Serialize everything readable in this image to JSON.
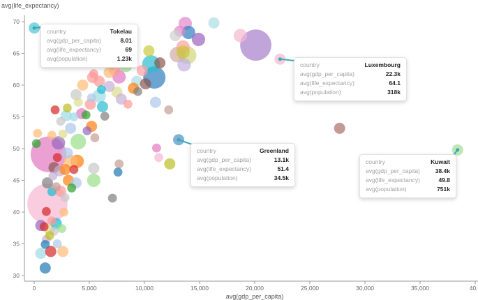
{
  "chart_data": {
    "type": "scatter",
    "title": "",
    "xlabel": "avg(gdp_per_capita)",
    "ylabel": "avg(life_expectancy)",
    "xlim": [
      -3000,
      40000
    ],
    "ylim": [
      29,
      72
    ],
    "xticks": [
      0,
      5000,
      10000,
      15000,
      20000,
      25000,
      30000,
      35000,
      40000
    ],
    "xtick_labels": [
      "0",
      "5,000",
      "10,000",
      "15,000",
      "20,000",
      "25,000",
      "30,000",
      "35,000",
      "40,0"
    ],
    "yticks": [
      30,
      35,
      40,
      45,
      50,
      55,
      60,
      65,
      70
    ],
    "ytick_labels": [
      "30",
      "35",
      "40",
      "45",
      "50",
      "55",
      "60",
      "65",
      "70"
    ],
    "grid": false,
    "size_encoding": "avg(population)",
    "color_encoding": "country",
    "points": [
      {
        "x": 8,
        "y": 69,
        "r": 5,
        "c": "#4fc3d1"
      },
      {
        "x": 22300,
        "y": 64.1,
        "r": 5,
        "c": "#f4b6cf"
      },
      {
        "x": 13100,
        "y": 51.4,
        "r": 5,
        "c": "#4a90c8"
      },
      {
        "x": 38400,
        "y": 49.8,
        "r": 5,
        "c": "#a4dc94"
      },
      {
        "x": 20100,
        "y": 66.3,
        "r": 14,
        "c": "#a67fcb"
      },
      {
        "x": 18700,
        "y": 67.8,
        "r": 6,
        "c": "#f4b6cf"
      },
      {
        "x": 27700,
        "y": 53.2,
        "r": 5,
        "c": "#a86f6a"
      },
      {
        "x": 16300,
        "y": 69.8,
        "r": 5,
        "c": "#a9dde6"
      },
      {
        "x": 13700,
        "y": 69.7,
        "r": 6,
        "c": "#e387c9"
      },
      {
        "x": 14000,
        "y": 68.3,
        "r": 6,
        "c": "#2f7fbf"
      },
      {
        "x": 14900,
        "y": 67.2,
        "r": 6,
        "c": "#9b62c1"
      },
      {
        "x": 13200,
        "y": 68.5,
        "r": 5,
        "c": "#e387c9"
      },
      {
        "x": 12800,
        "y": 67.8,
        "r": 5,
        "c": "#cfcfcf"
      },
      {
        "x": 13500,
        "y": 66.0,
        "r": 6,
        "c": "#ff9f9f"
      },
      {
        "x": 13000,
        "y": 64.8,
        "r": 7,
        "c": "#d0a9a2"
      },
      {
        "x": 13900,
        "y": 64.7,
        "r": 8,
        "c": "#d2d47a"
      },
      {
        "x": 13500,
        "y": 65.2,
        "r": 6,
        "c": "#c9c93a"
      },
      {
        "x": 13600,
        "y": 63.2,
        "r": 6,
        "c": "#c3b1e0"
      },
      {
        "x": 10400,
        "y": 65.4,
        "r": 5,
        "c": "#c9c93a"
      },
      {
        "x": 10600,
        "y": 63.3,
        "r": 8,
        "c": "#2bbcd0"
      },
      {
        "x": 10900,
        "y": 61.2,
        "r": 10,
        "c": "#2f7fbf"
      },
      {
        "x": 11400,
        "y": 63.5,
        "r": 5,
        "c": "#8c564b"
      },
      {
        "x": 9800,
        "y": 62.3,
        "r": 5,
        "c": "#ff9f9f"
      },
      {
        "x": 9300,
        "y": 60.6,
        "r": 5,
        "c": "#a9dde6"
      },
      {
        "x": 10100,
        "y": 60.2,
        "r": 5,
        "c": "#8c564b"
      },
      {
        "x": 9000,
        "y": 59.5,
        "r": 5,
        "c": "#ff7f0e"
      },
      {
        "x": 9400,
        "y": 59.0,
        "r": 4,
        "c": "#7f7f7f"
      },
      {
        "x": 11000,
        "y": 57.3,
        "r": 5,
        "c": "#aec7e8"
      },
      {
        "x": 12200,
        "y": 56.1,
        "r": 4,
        "c": "#c49c94"
      },
      {
        "x": 11100,
        "y": 50.1,
        "r": 4,
        "c": "#e377c2"
      },
      {
        "x": 11300,
        "y": 48.6,
        "r": 4,
        "c": "#f7b6d2"
      },
      {
        "x": 12300,
        "y": 47.6,
        "r": 5,
        "c": "#bcbd22"
      },
      {
        "x": 7700,
        "y": 47.6,
        "r": 4,
        "c": "#c49c94"
      },
      {
        "x": 7600,
        "y": 46.3,
        "r": 4,
        "c": "#1f77b4"
      },
      {
        "x": 7100,
        "y": 42.2,
        "r": 4,
        "c": "#7f7f7f"
      },
      {
        "x": 5400,
        "y": 46.9,
        "r": 5,
        "c": "#c7c7c7"
      },
      {
        "x": 5400,
        "y": 45.0,
        "r": 6,
        "c": "#98df8a"
      },
      {
        "x": 4000,
        "y": 51.1,
        "r": 7,
        "c": "#98df8a"
      },
      {
        "x": 3900,
        "y": 48.0,
        "r": 6,
        "c": "#ff7f0e"
      },
      {
        "x": 3300,
        "y": 48.0,
        "r": 6,
        "c": "#ffbb78"
      },
      {
        "x": 4300,
        "y": 55.5,
        "r": 5,
        "c": "#e377c2"
      },
      {
        "x": 5100,
        "y": 57.0,
        "r": 5,
        "c": "#ff9896"
      },
      {
        "x": 5900,
        "y": 58.3,
        "r": 6,
        "c": "#9edae5"
      },
      {
        "x": 6200,
        "y": 56.6,
        "r": 5,
        "c": "#2bbcd0"
      },
      {
        "x": 6400,
        "y": 55.1,
        "r": 4,
        "c": "#7f7f7f"
      },
      {
        "x": 7500,
        "y": 58.9,
        "r": 5,
        "c": "#dbdb8d"
      },
      {
        "x": 6800,
        "y": 59.8,
        "r": 5,
        "c": "#c5b0d5"
      },
      {
        "x": 7300,
        "y": 62.3,
        "r": 5,
        "c": "#ff9896"
      },
      {
        "x": 7700,
        "y": 61.3,
        "r": 6,
        "c": "#e377c2"
      },
      {
        "x": 8300,
        "y": 63.1,
        "r": 6,
        "c": "#98df8a"
      },
      {
        "x": 5300,
        "y": 61.2,
        "r": 5,
        "c": "#ff9896"
      },
      {
        "x": 5900,
        "y": 60.6,
        "r": 5,
        "c": "#ff9896"
      },
      {
        "x": 4400,
        "y": 60.0,
        "r": 5,
        "c": "#ffbb78"
      },
      {
        "x": 3800,
        "y": 58.5,
        "r": 5,
        "c": "#c7c7c7"
      },
      {
        "x": 4000,
        "y": 57.3,
        "r": 4,
        "c": "#dbdb8d"
      },
      {
        "x": 2900,
        "y": 55.2,
        "r": 5,
        "c": "#9edae5"
      },
      {
        "x": 3300,
        "y": 53.2,
        "r": 5,
        "c": "#aec7e8"
      },
      {
        "x": 4700,
        "y": 55.3,
        "r": 4,
        "c": "#2ca02c"
      },
      {
        "x": 5200,
        "y": 53.5,
        "r": 5,
        "c": "#ff7f0e"
      },
      {
        "x": 5500,
        "y": 51.7,
        "r": 4,
        "c": "#c49c94"
      },
      {
        "x": 1900,
        "y": 56.1,
        "r": 4,
        "c": "#d62728"
      },
      {
        "x": 1600,
        "y": 52.1,
        "r": 4,
        "c": "#ffbb78"
      },
      {
        "x": 2200,
        "y": 50.9,
        "r": 6,
        "c": "#9467bd"
      },
      {
        "x": 2600,
        "y": 52.3,
        "r": 4,
        "c": "#dbdb8d"
      },
      {
        "x": 1300,
        "y": 49.1,
        "r": 16,
        "c": "#e377c2"
      },
      {
        "x": 1200,
        "y": 41.3,
        "r": 18,
        "c": "#f7b6d2"
      },
      {
        "x": 300,
        "y": 52.4,
        "r": 4,
        "c": "#ffbb78"
      },
      {
        "x": 200,
        "y": 50.8,
        "r": 4,
        "c": "#2ca02c"
      },
      {
        "x": 1800,
        "y": 47.0,
        "r": 5,
        "c": "#8c564b"
      },
      {
        "x": 1200,
        "y": 44.6,
        "r": 5,
        "c": "#7f7f7f"
      },
      {
        "x": 2300,
        "y": 46.5,
        "r": 5,
        "c": "#c5b0d5"
      },
      {
        "x": 2800,
        "y": 46.7,
        "r": 5,
        "c": "#ff7f0e"
      },
      {
        "x": 3100,
        "y": 45.0,
        "r": 5,
        "c": "#ff7f0e"
      },
      {
        "x": 3600,
        "y": 46.7,
        "r": 4,
        "c": "#d62728"
      },
      {
        "x": 3800,
        "y": 44.6,
        "r": 5,
        "c": "#aec7e8"
      },
      {
        "x": 2400,
        "y": 43.3,
        "r": 5,
        "c": "#ff9896"
      },
      {
        "x": 1600,
        "y": 43.2,
        "r": 4,
        "c": "#17becf"
      },
      {
        "x": 2800,
        "y": 42.3,
        "r": 4,
        "c": "#c7c7c7"
      },
      {
        "x": 3400,
        "y": 43.8,
        "r": 4,
        "c": "#2ca02c"
      },
      {
        "x": 2000,
        "y": 44.0,
        "r": 4,
        "c": "#c49c94"
      },
      {
        "x": 1100,
        "y": 40.1,
        "r": 4,
        "c": "#d62728"
      },
      {
        "x": 1600,
        "y": 38.6,
        "r": 4,
        "c": "#ff9896"
      },
      {
        "x": 600,
        "y": 37.9,
        "r": 5,
        "c": "#9467bd"
      },
      {
        "x": 900,
        "y": 37.7,
        "r": 4,
        "c": "#d62728"
      },
      {
        "x": 1400,
        "y": 37.3,
        "r": 5,
        "c": "#dbdb8d"
      },
      {
        "x": 2000,
        "y": 38.2,
        "r": 5,
        "c": "#17becf"
      },
      {
        "x": 1800,
        "y": 37.0,
        "r": 4,
        "c": "#c7c7c7"
      },
      {
        "x": 2500,
        "y": 37.4,
        "r": 4,
        "c": "#98df8a"
      },
      {
        "x": 1100,
        "y": 35.7,
        "r": 4,
        "c": "#c5b0d5"
      },
      {
        "x": 1400,
        "y": 36.3,
        "r": 4,
        "c": "#bcbd22"
      },
      {
        "x": 1000,
        "y": 34.9,
        "r": 4,
        "c": "#1f77b4"
      },
      {
        "x": 600,
        "y": 33.5,
        "r": 5,
        "c": "#9edae5"
      },
      {
        "x": 1500,
        "y": 33.8,
        "r": 5,
        "c": "#d62728"
      },
      {
        "x": 2600,
        "y": 33.8,
        "r": 5,
        "c": "#ffbb78"
      },
      {
        "x": 1000,
        "y": 31.2,
        "r": 5,
        "c": "#1f77b4"
      },
      {
        "x": 6800,
        "y": 62.0,
        "r": 5,
        "c": "#ffbb78"
      },
      {
        "x": 5400,
        "y": 61.8,
        "r": 4,
        "c": "#ff9896"
      },
      {
        "x": 7900,
        "y": 57.8,
        "r": 5,
        "c": "#c5b0d5"
      },
      {
        "x": 8500,
        "y": 57.0,
        "r": 4,
        "c": "#ff9896"
      },
      {
        "x": 5200,
        "y": 58.0,
        "r": 4,
        "c": "#aec7e8"
      },
      {
        "x": 6100,
        "y": 59.3,
        "r": 4,
        "c": "#17becf"
      },
      {
        "x": 3000,
        "y": 56.4,
        "r": 4,
        "c": "#bcbd22"
      },
      {
        "x": 3600,
        "y": 55.0,
        "r": 4,
        "c": "#9edae5"
      },
      {
        "x": 2400,
        "y": 54.3,
        "r": 4,
        "c": "#c7c7c7"
      },
      {
        "x": 4800,
        "y": 52.8,
        "r": 4,
        "c": "#9467bd"
      },
      {
        "x": 3000,
        "y": 49.3,
        "r": 5,
        "c": "#aec7e8"
      },
      {
        "x": 2100,
        "y": 48.6,
        "r": 4,
        "c": "#d62728"
      },
      {
        "x": 1700,
        "y": 45.7,
        "r": 4,
        "c": "#c5b0d5"
      },
      {
        "x": 2700,
        "y": 40.0,
        "r": 4,
        "c": "#ffbb78"
      },
      {
        "x": 2100,
        "y": 35.0,
        "r": 4,
        "c": "#aec7e8"
      }
    ]
  },
  "tooltips": [
    {
      "id": "tokelau",
      "rows": [
        [
          "country",
          "Tokelau"
        ],
        [
          "avg(gdp_per_capita)",
          "8.01"
        ],
        [
          "avg(life_expectancy)",
          "69"
        ],
        [
          "avg(population)",
          "1.23k"
        ]
      ]
    },
    {
      "id": "luxembourg",
      "rows": [
        [
          "country",
          "Luxembourg"
        ],
        [
          "avg(gdp_per_capita)",
          "22.3k"
        ],
        [
          "avg(life_expectancy)",
          "64.1"
        ],
        [
          "avg(population)",
          "318k"
        ]
      ]
    },
    {
      "id": "greenland",
      "rows": [
        [
          "country",
          "Greenland"
        ],
        [
          "avg(gdp_per_capita)",
          "13.1k"
        ],
        [
          "avg(life_expectancy)",
          "51.4"
        ],
        [
          "avg(population)",
          "34.5k"
        ]
      ]
    },
    {
      "id": "kuwait",
      "rows": [
        [
          "country",
          "Kuwait"
        ],
        [
          "avg(gdp_per_capita)",
          "38.4k"
        ],
        [
          "avg(life_expectancy)",
          "49.8"
        ],
        [
          "avg(population)",
          "751k"
        ]
      ]
    }
  ],
  "colors": {
    "pointer": "#3aa8b8",
    "axis": "#9a9a9a"
  }
}
